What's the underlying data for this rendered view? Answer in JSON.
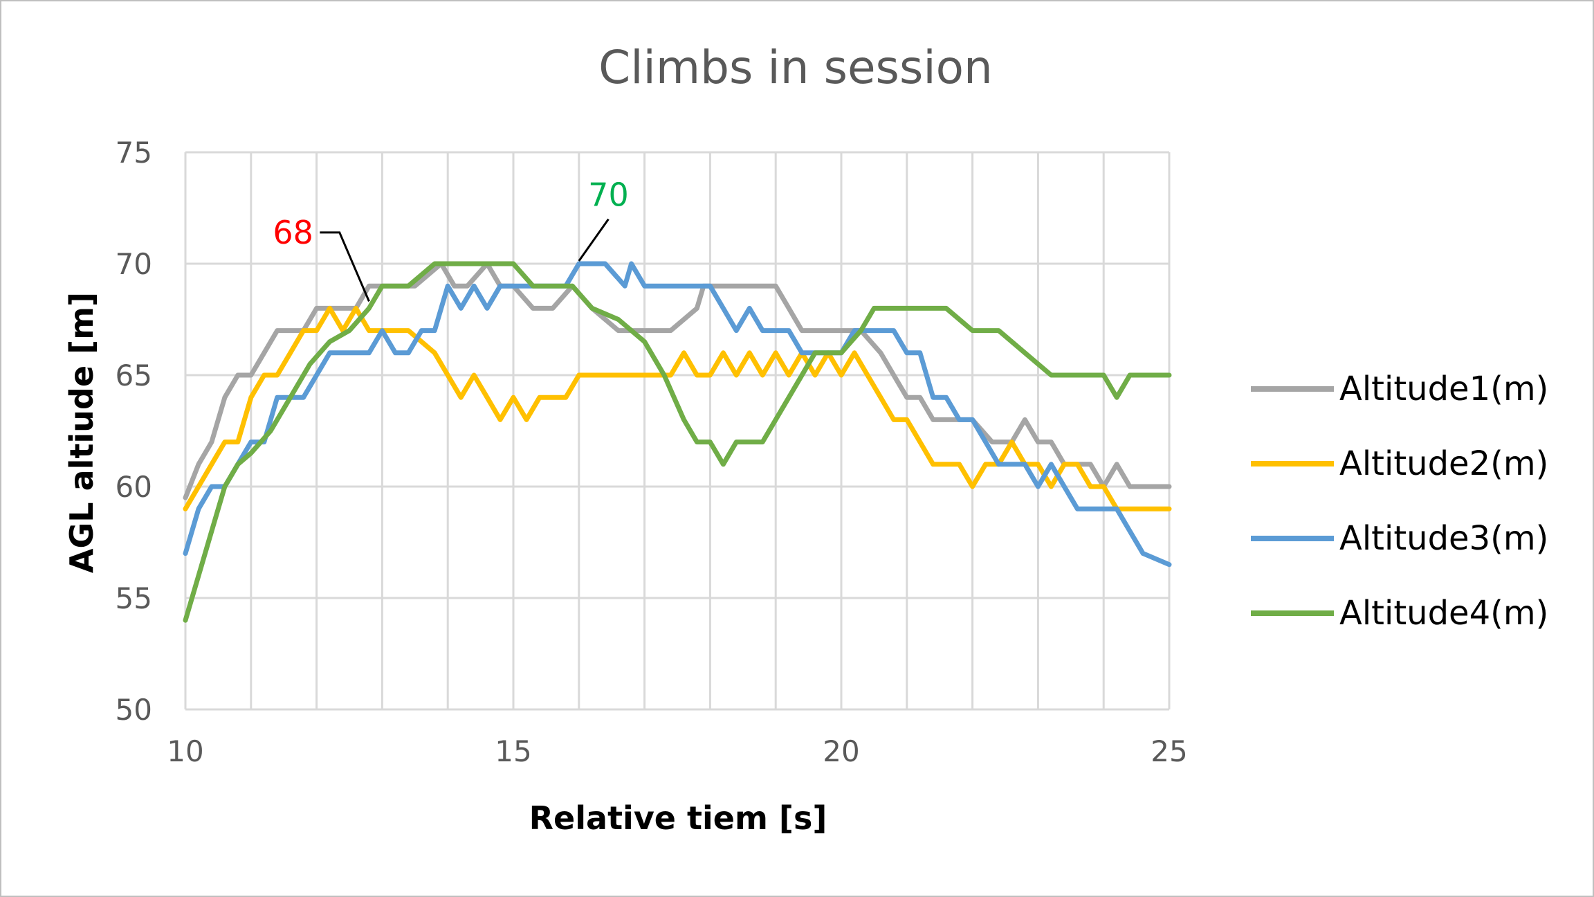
{
  "chart_data": {
    "type": "line",
    "title": "Climbs in session",
    "xlabel": "Relative tiem [s]",
    "ylabel": "AGL altiude [m]",
    "xlim": [
      10,
      25
    ],
    "ylim": [
      50,
      75
    ],
    "xticks": [
      10,
      15,
      20,
      25
    ],
    "yticks": [
      50,
      55,
      60,
      65,
      70,
      75
    ],
    "x_minor_grid_step": 1,
    "grid": true,
    "legend_position": "right",
    "series": [
      {
        "name": "Altitude1(m)",
        "color": "#a5a5a5",
        "x": [
          10,
          10.2,
          10.4,
          10.6,
          10.8,
          11.0,
          11.2,
          11.4,
          11.6,
          11.8,
          12.0,
          12.2,
          12.4,
          12.6,
          12.8,
          13.0,
          13.5,
          13.9,
          14.1,
          14.3,
          14.6,
          14.8,
          15.0,
          15.3,
          15.6,
          15.9,
          16.2,
          16.6,
          17.0,
          17.4,
          17.8,
          17.9,
          18.2,
          18.6,
          19.0,
          19.2,
          19.4,
          19.6,
          20.0,
          20.3,
          20.6,
          20.8,
          21.0,
          21.2,
          21.4,
          21.6,
          22.0,
          22.3,
          22.6,
          22.8,
          23.0,
          23.2,
          23.4,
          23.6,
          23.8,
          24.0,
          24.2,
          24.4,
          24.6,
          25.0
        ],
        "values": [
          59.5,
          61,
          62,
          64,
          65,
          65,
          66,
          67,
          67,
          67,
          68,
          68,
          68,
          68,
          69,
          69,
          69,
          70,
          69,
          69,
          70,
          69,
          69,
          68,
          68,
          69,
          68,
          67,
          67,
          67,
          68,
          69,
          69,
          69,
          69,
          68,
          67,
          67,
          67,
          67,
          66,
          65,
          64,
          64,
          63,
          63,
          63,
          62,
          62,
          63,
          62,
          62,
          61,
          61,
          61,
          60,
          61,
          60,
          60,
          60
        ]
      },
      {
        "name": "Altitude2(m)",
        "color": "#ffc000",
        "x": [
          10,
          10.2,
          10.4,
          10.6,
          10.8,
          11.0,
          11.2,
          11.4,
          11.6,
          11.8,
          12.0,
          12.2,
          12.4,
          12.6,
          12.8,
          13.0,
          13.4,
          13.8,
          14.0,
          14.2,
          14.4,
          14.6,
          14.8,
          15.0,
          15.2,
          15.4,
          15.6,
          15.8,
          16.0,
          16.2,
          16.6,
          17.0,
          17.4,
          17.6,
          17.8,
          18.0,
          18.2,
          18.4,
          18.6,
          18.8,
          19.0,
          19.2,
          19.4,
          19.6,
          19.8,
          20.0,
          20.2,
          20.4,
          20.6,
          20.8,
          21.0,
          21.2,
          21.4,
          21.6,
          21.8,
          22.0,
          22.2,
          22.4,
          22.6,
          22.8,
          23.0,
          23.2,
          23.4,
          23.6,
          23.8,
          24.0,
          24.2,
          24.6,
          25.0
        ],
        "values": [
          59,
          60,
          61,
          62,
          62,
          64,
          65,
          65,
          66,
          67,
          67,
          68,
          67,
          68,
          67,
          67,
          67,
          66,
          65,
          64,
          65,
          64,
          63,
          64,
          63,
          64,
          64,
          64,
          65,
          65,
          65,
          65,
          65,
          66,
          65,
          65,
          66,
          65,
          66,
          65,
          66,
          65,
          66,
          65,
          66,
          65,
          66,
          65,
          64,
          63,
          63,
          62,
          61,
          61,
          61,
          60,
          61,
          61,
          62,
          61,
          61,
          60,
          61,
          61,
          60,
          60,
          59,
          59,
          59
        ]
      },
      {
        "name": "Altitude3(m)",
        "color": "#5b9bd5",
        "x": [
          10,
          10.2,
          10.4,
          10.6,
          10.8,
          11.0,
          11.2,
          11.4,
          11.6,
          11.8,
          12.0,
          12.2,
          12.5,
          12.8,
          13.0,
          13.2,
          13.4,
          13.6,
          13.8,
          14.0,
          14.2,
          14.4,
          14.6,
          14.8,
          15.0,
          15.4,
          15.8,
          16.0,
          16.4,
          16.7,
          16.8,
          17.0,
          17.2,
          17.6,
          18.0,
          18.2,
          18.4,
          18.6,
          18.8,
          19.0,
          19.2,
          19.4,
          19.8,
          20.0,
          20.2,
          20.4,
          20.8,
          21.0,
          21.2,
          21.4,
          21.6,
          21.8,
          22.0,
          22.2,
          22.4,
          22.6,
          22.8,
          23.0,
          23.2,
          23.4,
          23.6,
          23.8,
          24.0,
          24.2,
          24.4,
          24.6,
          25.0
        ],
        "values": [
          57,
          59,
          60,
          60,
          61,
          62,
          62,
          64,
          64,
          64,
          65,
          66,
          66,
          66,
          67,
          66,
          66,
          67,
          67,
          69,
          68,
          69,
          68,
          69,
          69,
          69,
          69,
          70,
          70,
          69,
          70,
          69,
          69,
          69,
          69,
          68,
          67,
          68,
          67,
          67,
          67,
          66,
          66,
          66,
          67,
          67,
          67,
          66,
          66,
          64,
          64,
          63,
          63,
          62,
          61,
          61,
          61,
          60,
          61,
          60,
          59,
          59,
          59,
          59,
          58,
          57,
          56.5
        ]
      },
      {
        "name": "Altitude4(m)",
        "color": "#70ad47",
        "x": [
          10,
          10.2,
          10.4,
          10.6,
          10.8,
          11.0,
          11.3,
          11.6,
          11.9,
          12.2,
          12.5,
          12.8,
          13.0,
          13.4,
          13.8,
          14.2,
          14.6,
          15.0,
          15.3,
          15.6,
          15.9,
          16.2,
          16.6,
          17.0,
          17.3,
          17.6,
          17.8,
          18.0,
          18.2,
          18.4,
          18.8,
          19.2,
          19.6,
          20.0,
          20.3,
          20.5,
          20.8,
          21.2,
          21.6,
          22.0,
          22.4,
          22.8,
          23.2,
          23.6,
          24.0,
          24.2,
          24.4,
          24.6,
          25.0
        ],
        "values": [
          54,
          56,
          58,
          60,
          61,
          61.5,
          62.5,
          64,
          65.5,
          66.5,
          67,
          68,
          69,
          69,
          70,
          70,
          70,
          70,
          69,
          69,
          69,
          68,
          67.5,
          66.5,
          65,
          63,
          62,
          62,
          61,
          62,
          62,
          64,
          66,
          66,
          67,
          68,
          68,
          68,
          68,
          67,
          67,
          66,
          65,
          65,
          65,
          64,
          65,
          65,
          65
        ]
      }
    ],
    "annotations": [
      {
        "text": "68",
        "color": "#ff0000",
        "x": 12.8,
        "y": 68
      },
      {
        "text": "70",
        "color": "#00b050",
        "x": 16.0,
        "y": 70
      }
    ]
  }
}
